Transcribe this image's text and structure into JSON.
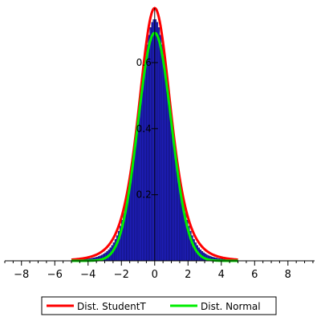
{
  "chart_data": {
    "type": "bar",
    "title": "",
    "xlabel": "",
    "ylabel": "",
    "xlim": [
      -9,
      9.6
    ],
    "ylim": [
      0,
      0.77
    ],
    "xticks": [
      -8,
      -6,
      -4,
      -2,
      0,
      2,
      4,
      6,
      8
    ],
    "xtick_labels": [
      "−8",
      "−6",
      "−4",
      "−2",
      "0",
      "2",
      "4",
      "6",
      "8"
    ],
    "yticks": [
      0.2,
      0.4,
      0.6
    ],
    "ytick_labels": [
      "0.2",
      "0.4",
      "0.6"
    ],
    "grid": false,
    "legend_position": "bottom-center",
    "histogram": {
      "bin_start": -5,
      "bin_width": 0.1,
      "bin_count": 100,
      "fill_color": "#1f1fbf",
      "edge_color": "#000033"
    },
    "series": [
      {
        "name": "Dist. StudentT",
        "curve": "student-t",
        "color": "#ff0000",
        "peak": 0.765,
        "points": [
          [
            -5,
            0.004
          ],
          [
            -4,
            0.01
          ],
          [
            -3,
            0.03
          ],
          [
            -2,
            0.11
          ],
          [
            -1.5,
            0.2
          ],
          [
            -1,
            0.34
          ],
          [
            -0.5,
            0.6
          ],
          [
            0,
            0.765
          ],
          [
            0.5,
            0.6
          ],
          [
            1,
            0.34
          ],
          [
            1.5,
            0.2
          ],
          [
            2,
            0.11
          ],
          [
            3,
            0.03
          ],
          [
            4,
            0.01
          ],
          [
            5,
            0.004
          ]
        ]
      },
      {
        "name": "Dist. Normal",
        "curve": "normal",
        "color": "#00ee00",
        "peak": 0.69,
        "points": [
          [
            -5,
            0.0
          ],
          [
            -4,
            0.001
          ],
          [
            -3,
            0.017
          ],
          [
            -2,
            0.12
          ],
          [
            -1.5,
            0.23
          ],
          [
            -1,
            0.37
          ],
          [
            -0.5,
            0.58
          ],
          [
            0,
            0.69
          ],
          [
            0.5,
            0.58
          ],
          [
            1,
            0.37
          ],
          [
            1.5,
            0.23
          ],
          [
            2,
            0.12
          ],
          [
            3,
            0.017
          ],
          [
            4,
            0.001
          ],
          [
            5,
            0.0
          ]
        ]
      }
    ]
  }
}
